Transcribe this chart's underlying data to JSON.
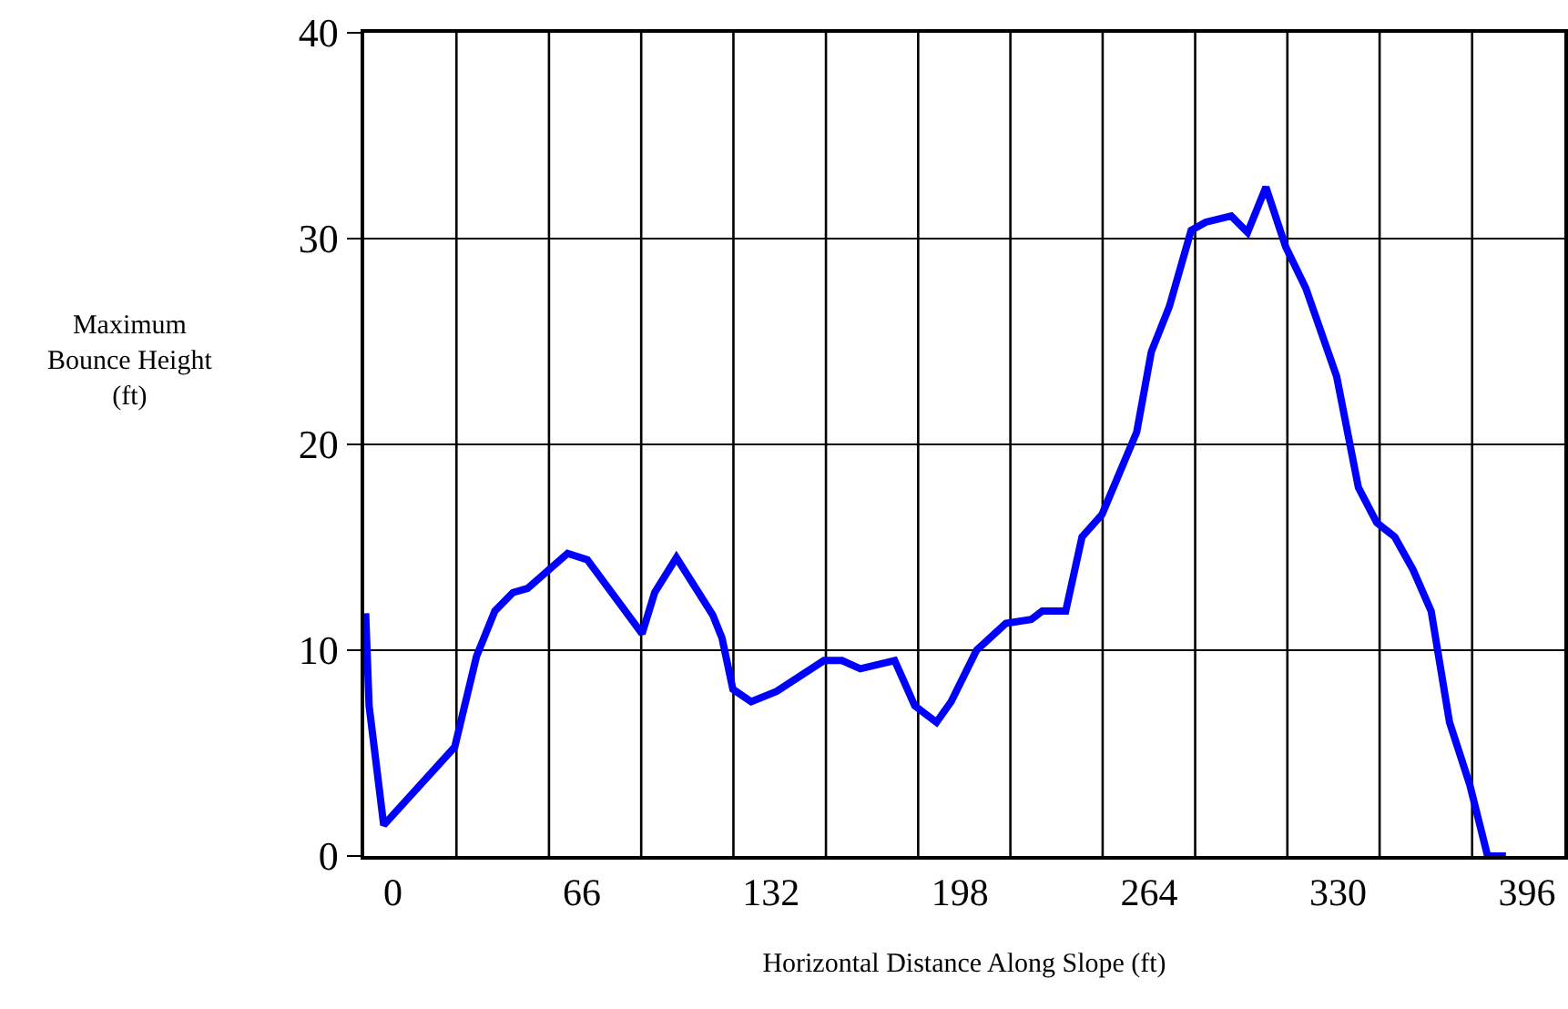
{
  "chart_data": {
    "type": "line",
    "xlabel": "Horizontal Distance Along Slope (ft)",
    "ylabel": "Maximum\nBounce Height\n(ft)",
    "x": [
      -9.5,
      -8.3,
      -3.2,
      21.6,
      29.2,
      35.6,
      41.9,
      47.0,
      61.0,
      67.9,
      87.0,
      91.4,
      99.0,
      111.7,
      114.9,
      118.7,
      125.1,
      134.0,
      150.5,
      156.8,
      163.2,
      175.2,
      182.2,
      189.8,
      194.9,
      203.8,
      214.0,
      222.9,
      226.7,
      234.9,
      240.6,
      247.6,
      259.7,
      264.8,
      271.1,
      278.7,
      283.8,
      292.7,
      298.4,
      304.8,
      311.7,
      318.7,
      329.5,
      337.1,
      343.5,
      349.8,
      356.2,
      362.5,
      368.9,
      375.9,
      382.2,
      388.6
    ],
    "series": [
      {
        "color": "#0000ff",
        "values": [
          11.8,
          7.3,
          1.5,
          5.3,
          9.7,
          11.9,
          12.8,
          13.0,
          14.7,
          14.4,
          10.8,
          12.8,
          14.5,
          11.7,
          10.6,
          8.1,
          7.5,
          8.0,
          9.5,
          9.5,
          9.1,
          9.5,
          7.3,
          6.5,
          7.5,
          10.0,
          11.3,
          11.5,
          11.9,
          11.9,
          15.5,
          16.6,
          20.6,
          24.5,
          26.7,
          30.4,
          30.8,
          31.1,
          30.3,
          32.5,
          29.6,
          27.6,
          23.3,
          17.9,
          16.2,
          15.5,
          13.9,
          11.9,
          6.5,
          3.5,
          0,
          0
        ]
      }
    ],
    "xlim": [
      -10,
      409
    ],
    "ylim": [
      0,
      40
    ],
    "xticks": [
      {
        "value": 0,
        "label": "0"
      },
      {
        "value": 66,
        "label": "66"
      },
      {
        "value": 132,
        "label": "132"
      },
      {
        "value": 198,
        "label": "198"
      },
      {
        "value": 264,
        "label": "264"
      },
      {
        "value": 330,
        "label": "330"
      },
      {
        "value": 396,
        "label": "396"
      },
      {
        "value": 22.2,
        "label": null
      },
      {
        "value": 54.5,
        "label": null
      },
      {
        "value": 86.7,
        "label": null
      },
      {
        "value": 118.9,
        "label": null
      },
      {
        "value": 151.2,
        "label": null
      },
      {
        "value": 183.4,
        "label": null
      },
      {
        "value": 215.6,
        "label": null
      },
      {
        "value": 247.8,
        "label": null
      },
      {
        "value": 280.1,
        "label": null
      },
      {
        "value": 312.3,
        "label": null
      },
      {
        "value": 344.5,
        "label": null
      },
      {
        "value": 376.8,
        "label": null
      }
    ],
    "yticks": [
      0,
      10,
      20,
      30,
      40
    ],
    "grid": true,
    "line_style": "solid"
  }
}
